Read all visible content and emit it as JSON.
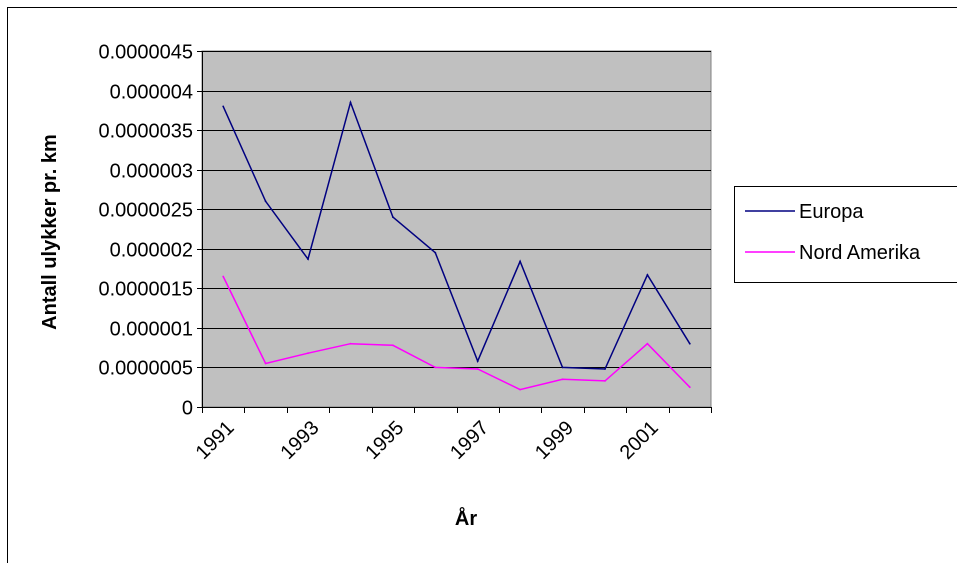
{
  "chart_data": {
    "type": "line",
    "title": "",
    "xlabel": "År",
    "ylabel": "Antall ulykker pr. km",
    "x": [
      1991,
      1992,
      1993,
      1994,
      1995,
      1996,
      1997,
      1998,
      1999,
      2000,
      2001,
      2002
    ],
    "x_tick_labels": [
      "1991",
      "1993",
      "1995",
      "1997",
      "1999",
      "2001"
    ],
    "y_tick_labels": [
      "0",
      "0.0000005",
      "0.000001",
      "0.0000015",
      "0.000002",
      "0.0000025",
      "0.000003",
      "0.0000035",
      "0.000004",
      "0.0000045"
    ],
    "ylim": [
      0,
      4.5e-06
    ],
    "grid": true,
    "legend_position": "right",
    "series": [
      {
        "name": "Europa",
        "color": "#000080",
        "values": [
          3.8e-06,
          2.6e-06,
          1.87e-06,
          3.85e-06,
          2.4e-06,
          1.95e-06,
          5.8e-07,
          1.84e-06,
          5e-07,
          4.8e-07,
          1.67e-06,
          8e-07
        ]
      },
      {
        "name": "Nord Amerika",
        "color": "#ff00ff",
        "values": [
          1.65e-06,
          5.5e-07,
          6.8e-07,
          8e-07,
          7.8e-07,
          5e-07,
          4.8e-07,
          2.2e-07,
          3.5e-07,
          3.3e-07,
          8e-07,
          2.5e-07
        ]
      }
    ],
    "plot_background": "#c0c0c0"
  }
}
